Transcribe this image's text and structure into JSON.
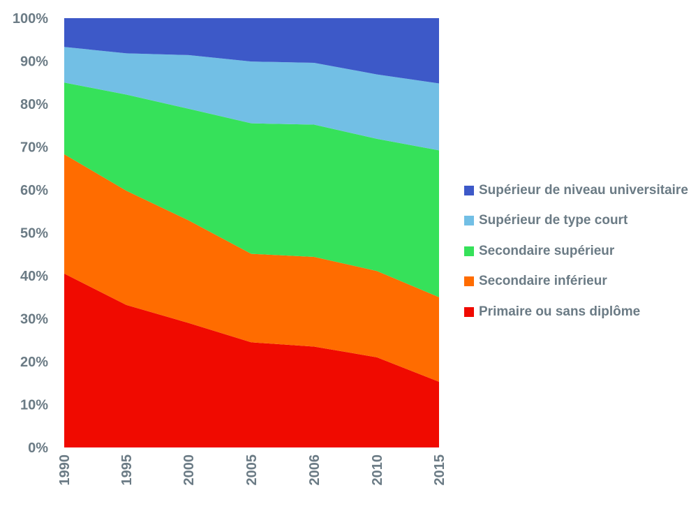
{
  "chart_data": {
    "type": "area",
    "stacked": "percent",
    "categories": [
      "1990",
      "1995",
      "2000",
      "2005",
      "2006",
      "2010",
      "2015"
    ],
    "ylim": [
      0,
      100
    ],
    "yticks": [
      "0%",
      "10%",
      "20%",
      "30%",
      "40%",
      "50%",
      "60%",
      "70%",
      "80%",
      "90%",
      "100%"
    ],
    "legend_position": "right",
    "grid": false,
    "series": [
      {
        "name": "Primaire ou sans diplôme",
        "color": "#f00a00",
        "values": [
          40.5,
          33.2,
          29.0,
          24.5,
          23.5,
          21.0,
          15.3
        ]
      },
      {
        "name": "Secondaire inférieur",
        "color": "#ff6c00",
        "values": [
          27.8,
          26.6,
          23.9,
          20.6,
          20.9,
          20.1,
          19.7
        ]
      },
      {
        "name": "Secondaire supérieur",
        "color": "#36e15a",
        "values": [
          16.7,
          22.4,
          26.0,
          30.4,
          30.8,
          30.8,
          34.2
        ]
      },
      {
        "name": "Supérieur de type court",
        "color": "#72bfe5",
        "values": [
          8.3,
          9.6,
          12.5,
          14.4,
          14.4,
          15.0,
          15.6
        ]
      },
      {
        "name": "Supérieur de niveau universitaire",
        "color": "#3d59c8",
        "values": [
          6.7,
          8.2,
          8.6,
          10.1,
          10.4,
          13.1,
          15.2
        ]
      }
    ]
  }
}
